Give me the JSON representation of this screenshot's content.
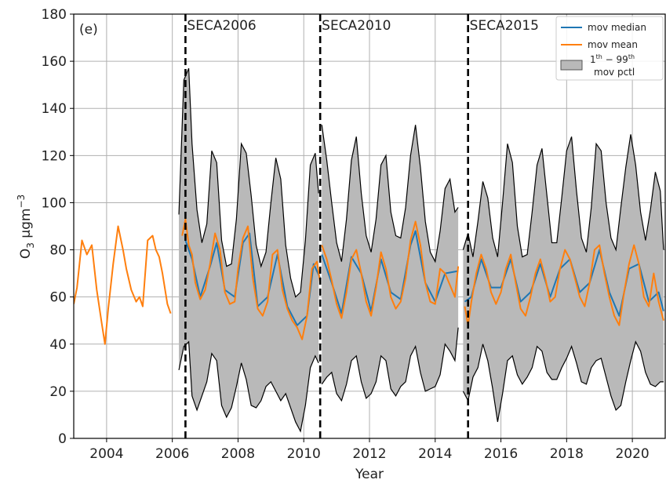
{
  "chart_data": {
    "type": "line",
    "panel_label": "(e)",
    "xlabel": "Year",
    "ylabel_main": "O",
    "ylabel_sub": "3",
    "ylabel_unit": "μgm",
    "ylabel_exp": "−3",
    "xlim": [
      2003.0,
      2021.0
    ],
    "ylim": [
      0,
      180
    ],
    "x_ticks": [
      2004,
      2006,
      2008,
      2010,
      2012,
      2014,
      2016,
      2018,
      2020
    ],
    "y_ticks": [
      0,
      20,
      40,
      60,
      80,
      100,
      120,
      140,
      160,
      180
    ],
    "grid": true,
    "legend_position": "top-right",
    "colors": {
      "median": "#1f77b4",
      "mean": "#ff7f0e",
      "band_fill": "#b9b9b9",
      "band_edge": "#000000",
      "events": "#000000"
    },
    "events": [
      {
        "x": 2006.4,
        "label": "SECA2006"
      },
      {
        "x": 2010.5,
        "label": "SECA2010"
      },
      {
        "x": 2015.0,
        "label": "SECA2015"
      }
    ],
    "legend": [
      {
        "key": "median",
        "label": "mov median"
      },
      {
        "key": "mean",
        "label": "mov mean"
      },
      {
        "key": "band",
        "label_sup1": "th",
        "label_pre": "1",
        "label_mid": " − 99",
        "label_sup2": "th",
        "label_line2": "mov pctl"
      }
    ],
    "series": [
      {
        "name": "mov mean",
        "key": "mean",
        "segments": [
          {
            "x": [
              2003.0,
              2003.1,
              2003.25,
              2003.4,
              2003.55,
              2003.7,
              2003.85,
              2003.95,
              2004.05,
              2004.2,
              2004.35,
              2004.5,
              2004.6,
              2004.75,
              2004.9,
              2005.0,
              2005.1,
              2005.25,
              2005.4,
              2005.5,
              2005.6,
              2005.7,
              2005.85,
              2005.95
            ],
            "y": [
              57,
              64,
              84,
              78,
              82,
              63,
              49,
              40,
              55,
              74,
              90,
              80,
              72,
              63,
              58,
              60,
              56,
              84,
              86,
              80,
              77,
              70,
              57,
              53
            ]
          },
          {
            "x": [
              2006.3,
              2006.4,
              2006.5,
              2006.6,
              2006.7,
              2006.85,
              2007.0,
              2007.15,
              2007.3,
              2007.45,
              2007.6,
              2007.75,
              2007.9,
              2008.0,
              2008.15,
              2008.3,
              2008.45,
              2008.6,
              2008.75,
              2008.9,
              2009.05,
              2009.2,
              2009.35,
              2009.5,
              2009.65,
              2009.8,
              2009.95,
              2010.1,
              2010.25,
              2010.4,
              2010.5
            ],
            "y": [
              86,
              93,
              82,
              78,
              66,
              59,
              63,
              74,
              87,
              80,
              62,
              57,
              58,
              72,
              85,
              90,
              68,
              55,
              52,
              58,
              78,
              80,
              63,
              55,
              50,
              47,
              42,
              52,
              72,
              75,
              66
            ]
          },
          {
            "x": [
              2010.55,
              2010.7,
              2010.85,
              2011.0,
              2011.15,
              2011.3,
              2011.45,
              2011.6,
              2011.75,
              2011.9,
              2012.05,
              2012.2,
              2012.35,
              2012.5,
              2012.65,
              2012.8,
              2012.95,
              2013.1,
              2013.25,
              2013.4,
              2013.55,
              2013.7,
              2013.85,
              2014.0,
              2014.15,
              2014.3,
              2014.45,
              2014.6,
              2014.7
            ],
            "y": [
              82,
              76,
              67,
              57,
              51,
              62,
              76,
              80,
              70,
              58,
              52,
              64,
              79,
              72,
              60,
              55,
              58,
              68,
              84,
              92,
              82,
              66,
              58,
              57,
              72,
              70,
              65,
              60,
              73
            ]
          },
          {
            "x": [
              2014.9,
              2015.0,
              2015.1,
              2015.25,
              2015.4,
              2015.55,
              2015.7,
              2015.85,
              2016.0,
              2016.15,
              2016.3,
              2016.45,
              2016.6,
              2016.75,
              2016.9,
              2017.05,
              2017.2,
              2017.35,
              2017.5,
              2017.65,
              2017.8,
              2017.95,
              2018.1,
              2018.25,
              2018.4,
              2018.55,
              2018.7,
              2018.85,
              2019.0,
              2019.15,
              2019.3,
              2019.45,
              2019.6,
              2019.75,
              2019.9,
              2020.05,
              2020.2,
              2020.35,
              2020.5,
              2020.65,
              2020.8,
              2020.95
            ],
            "y": [
              56,
              48,
              58,
              70,
              78,
              72,
              62,
              57,
              62,
              72,
              78,
              66,
              55,
              52,
              60,
              70,
              76,
              68,
              58,
              60,
              72,
              80,
              76,
              68,
              60,
              56,
              66,
              80,
              82,
              70,
              60,
              52,
              48,
              62,
              74,
              82,
              74,
              60,
              56,
              70,
              58,
              50
            ]
          }
        ]
      },
      {
        "name": "mov median",
        "key": "median",
        "segments": [
          {
            "x": [
              2006.4,
              2006.6,
              2006.85,
              2007.15,
              2007.35,
              2007.6,
              2007.9,
              2008.15,
              2008.35,
              2008.6,
              2008.9,
              2009.2,
              2009.5,
              2009.8,
              2010.1,
              2010.3,
              2010.5
            ],
            "y": [
              84,
              76,
              60,
              73,
              83,
              63,
              60,
              83,
              87,
              56,
              60,
              78,
              56,
              48,
              52,
              74,
              68
            ]
          },
          {
            "x": [
              2010.55,
              2010.85,
              2011.15,
              2011.45,
              2011.75,
              2012.05,
              2012.35,
              2012.65,
              2012.95,
              2013.25,
              2013.4,
              2013.7,
              2014.0,
              2014.3,
              2014.7
            ],
            "y": [
              78,
              66,
              53,
              77,
              70,
              54,
              76,
              62,
              59,
              82,
              88,
              66,
              58,
              70,
              71
            ]
          },
          {
            "x": [
              2014.9,
              2015.1,
              2015.4,
              2015.7,
              2016.0,
              2016.3,
              2016.6,
              2016.9,
              2017.2,
              2017.5,
              2017.8,
              2018.1,
              2018.4,
              2018.7,
              2019.0,
              2019.3,
              2019.6,
              2019.9,
              2020.2,
              2020.5,
              2020.8,
              2020.95
            ],
            "y": [
              58,
              60,
              76,
              64,
              64,
              76,
              58,
              62,
              74,
              60,
              72,
              76,
              62,
              66,
              80,
              62,
              52,
              72,
              74,
              58,
              62,
              54
            ]
          }
        ]
      },
      {
        "name": "1th − 99th mov pctl",
        "key": "band",
        "segments": [
          {
            "x": [
              2006.2,
              2006.35,
              2006.5,
              2006.6,
              2006.75,
              2006.9,
              2007.05,
              2007.2,
              2007.35,
              2007.5,
              2007.65,
              2007.8,
              2007.95,
              2008.1,
              2008.25,
              2008.4,
              2008.55,
              2008.7,
              2008.85,
              2009.0,
              2009.15,
              2009.3,
              2009.45,
              2009.6,
              2009.75,
              2009.9,
              2010.05,
              2010.2,
              2010.35,
              2010.45
            ],
            "upper": [
              95,
              152,
              157,
              125,
              97,
              83,
              91,
              122,
              117,
              84,
              73,
              74,
              93,
              125,
              121,
              103,
              82,
              73,
              79,
              100,
              119,
              110,
              82,
              68,
              60,
              62,
              84,
              116,
              121,
              104
            ],
            "lower": [
              29,
              39,
              41,
              18,
              12,
              18,
              24,
              36,
              33,
              14,
              9,
              13,
              22,
              32,
              25,
              14,
              13,
              16,
              22,
              24,
              20,
              16,
              19,
              13,
              7,
              3,
              14,
              30,
              35,
              32
            ]
          },
          {
            "x": [
              2010.55,
              2010.7,
              2010.85,
              2011.0,
              2011.15,
              2011.3,
              2011.45,
              2011.6,
              2011.75,
              2011.9,
              2012.05,
              2012.2,
              2012.35,
              2012.5,
              2012.65,
              2012.8,
              2012.95,
              2013.1,
              2013.25,
              2013.4,
              2013.55,
              2013.7,
              2013.85,
              2014.0,
              2014.15,
              2014.3,
              2014.45,
              2014.6,
              2014.7
            ],
            "upper": [
              133,
              118,
              100,
              83,
              75,
              93,
              118,
              128,
              104,
              86,
              79,
              93,
              116,
              120,
              96,
              86,
              85,
              98,
              120,
              133,
              115,
              92,
              79,
              75,
              88,
              106,
              110,
              96,
              98
            ],
            "lower": [
              23,
              26,
              28,
              19,
              16,
              23,
              33,
              35,
              24,
              17,
              19,
              24,
              35,
              33,
              21,
              18,
              22,
              24,
              35,
              39,
              28,
              20,
              21,
              22,
              27,
              40,
              37,
              33,
              47
            ]
          },
          {
            "x": [
              2014.85,
              2015.0,
              2015.15,
              2015.3,
              2015.45,
              2015.6,
              2015.75,
              2015.9,
              2016.05,
              2016.2,
              2016.35,
              2016.5,
              2016.65,
              2016.8,
              2016.95,
              2017.1,
              2017.25,
              2017.4,
              2017.55,
              2017.7,
              2017.85,
              2018.0,
              2018.15,
              2018.3,
              2018.45,
              2018.6,
              2018.75,
              2018.9,
              2019.05,
              2019.2,
              2019.35,
              2019.5,
              2019.65,
              2019.8,
              2019.95,
              2020.1,
              2020.25,
              2020.4,
              2020.55,
              2020.7,
              2020.85,
              2020.95
            ],
            "upper": [
              80,
              87,
              77,
              92,
              109,
              102,
              85,
              77,
              100,
              125,
              117,
              90,
              77,
              78,
              96,
              116,
              123,
              103,
              83,
              83,
              102,
              122,
              128,
              105,
              85,
              79,
              98,
              125,
              122,
              100,
              85,
              80,
              98,
              115,
              129,
              116,
              96,
              84,
              97,
              113,
              105,
              80
            ],
            "lower": [
              20,
              16,
              26,
              30,
              40,
              33,
              21,
              7,
              19,
              33,
              35,
              27,
              23,
              26,
              30,
              39,
              37,
              28,
              25,
              25,
              30,
              34,
              39,
              32,
              24,
              23,
              30,
              33,
              34,
              26,
              18,
              12,
              14,
              24,
              33,
              41,
              37,
              28,
              23,
              22,
              24,
              24
            ]
          }
        ]
      }
    ]
  }
}
